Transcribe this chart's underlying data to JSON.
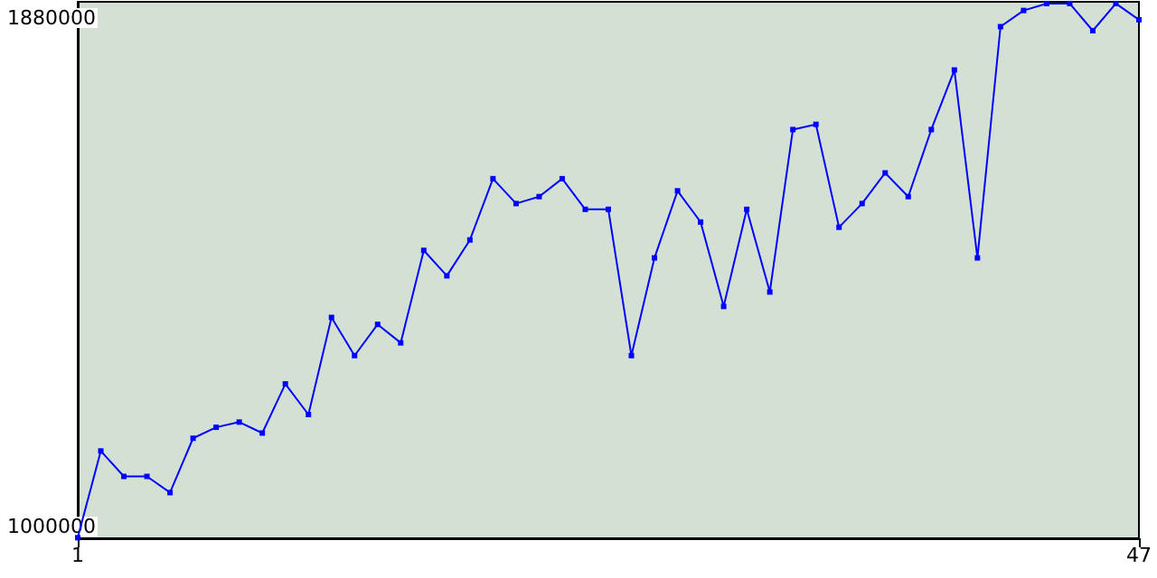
{
  "chart_data": {
    "type": "line",
    "x": [
      1,
      2,
      3,
      4,
      5,
      6,
      7,
      8,
      9,
      10,
      11,
      12,
      13,
      14,
      15,
      16,
      17,
      18,
      19,
      20,
      21,
      22,
      23,
      24,
      25,
      26,
      27,
      28,
      29,
      30,
      31,
      32,
      33,
      34,
      35,
      36,
      37,
      38,
      39,
      40,
      41,
      42,
      43,
      44,
      45,
      46,
      47
    ],
    "series": [
      {
        "color": "#0000ff",
        "values": [
          981000,
          1131000,
          1087000,
          1087000,
          1059000,
          1153000,
          1172000,
          1181000,
          1162000,
          1247000,
          1194000,
          1362000,
          1296000,
          1350000,
          1318000,
          1478000,
          1434000,
          1496000,
          1602000,
          1559000,
          1571000,
          1602000,
          1549000,
          1549000,
          1296000,
          1465000,
          1581000,
          1527000,
          1381000,
          1549000,
          1406000,
          1687000,
          1696000,
          1518000,
          1559000,
          1612000,
          1571000,
          1687000,
          1790000,
          1465000,
          1865000,
          1893000,
          1905000,
          1905000,
          1858000,
          1905000,
          1877000
        ]
      }
    ],
    "xlim": [
      1,
      47
    ],
    "xticks": [
      1,
      47
    ],
    "ylim": [
      980000,
      1908000
    ],
    "yticks": [
      1000000,
      1880000
    ],
    "grid": false,
    "marker": "square",
    "line_style": "solid"
  }
}
